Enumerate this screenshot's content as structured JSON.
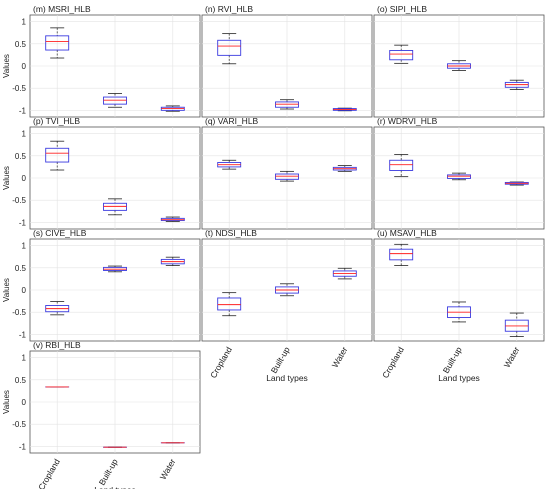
{
  "figure": {
    "ylabel": "Values",
    "xlabel": "Land types",
    "categories": [
      "Cropland",
      "Built-up",
      "Water"
    ],
    "y_ticks": [
      "1",
      "0.5",
      "0",
      "-0.5",
      "-1"
    ],
    "colors": {
      "box": "#3a3ae0",
      "median": "#ff2020",
      "whisker": "#222222",
      "grid": "#e3e3e3",
      "axis": "#555555"
    }
  },
  "chart_data": [
    {
      "type": "box",
      "title": "(m) MSRI_HLB",
      "ylim": [
        -1.15,
        1.15
      ],
      "grid": true,
      "categories": [
        "Cropland",
        "Built-up",
        "Water"
      ],
      "boxes": [
        {
          "min": 0.18,
          "q1": 0.36,
          "median": 0.55,
          "q3": 0.68,
          "max": 0.86
        },
        {
          "min": -0.93,
          "q1": -0.86,
          "median": -0.77,
          "q3": -0.7,
          "max": -0.62
        },
        {
          "min": -1.02,
          "q1": -1.0,
          "median": -0.96,
          "q3": -0.93,
          "max": -0.9
        }
      ]
    },
    {
      "type": "box",
      "title": "(n) RVI_HLB",
      "ylim": [
        -1.15,
        1.15
      ],
      "grid": true,
      "categories": [
        "Cropland",
        "Built-up",
        "Water"
      ],
      "boxes": [
        {
          "min": 0.05,
          "q1": 0.24,
          "median": 0.45,
          "q3": 0.58,
          "max": 0.73
        },
        {
          "min": -0.97,
          "q1": -0.93,
          "median": -0.86,
          "q3": -0.81,
          "max": -0.76
        },
        {
          "min": -1.01,
          "q1": -1.0,
          "median": -0.98,
          "q3": -0.96,
          "max": -0.95
        }
      ]
    },
    {
      "type": "box",
      "title": "(o) SIPI_HLB",
      "ylim": [
        -1.15,
        1.15
      ],
      "grid": true,
      "categories": [
        "Cropland",
        "Built-up",
        "Water"
      ],
      "boxes": [
        {
          "min": 0.06,
          "q1": 0.14,
          "median": 0.27,
          "q3": 0.35,
          "max": 0.47
        },
        {
          "min": -0.1,
          "q1": -0.05,
          "median": 0.0,
          "q3": 0.05,
          "max": 0.12
        },
        {
          "min": -0.53,
          "q1": -0.48,
          "median": -0.42,
          "q3": -0.37,
          "max": -0.32
        }
      ]
    },
    {
      "type": "box",
      "title": "(p) TVI_HLB",
      "ylim": [
        -1.15,
        1.15
      ],
      "grid": true,
      "categories": [
        "Cropland",
        "Built-up",
        "Water"
      ],
      "boxes": [
        {
          "min": 0.18,
          "q1": 0.36,
          "median": 0.56,
          "q3": 0.67,
          "max": 0.83
        },
        {
          "min": -0.83,
          "q1": -0.73,
          "median": -0.64,
          "q3": -0.57,
          "max": -0.47
        },
        {
          "min": -0.98,
          "q1": -0.96,
          "median": -0.94,
          "q3": -0.91,
          "max": -0.88
        }
      ]
    },
    {
      "type": "box",
      "title": "(q) VARI_HLB",
      "ylim": [
        -1.15,
        1.15
      ],
      "grid": true,
      "categories": [
        "Cropland",
        "Built-up",
        "Water"
      ],
      "boxes": [
        {
          "min": 0.2,
          "q1": 0.25,
          "median": 0.3,
          "q3": 0.35,
          "max": 0.4
        },
        {
          "min": -0.07,
          "q1": -0.03,
          "median": 0.04,
          "q3": 0.09,
          "max": 0.15
        },
        {
          "min": 0.15,
          "q1": 0.18,
          "median": 0.21,
          "q3": 0.24,
          "max": 0.28
        }
      ]
    },
    {
      "type": "box",
      "title": "(r) WDRVI_HLB",
      "ylim": [
        -1.15,
        1.15
      ],
      "grid": true,
      "categories": [
        "Cropland",
        "Built-up",
        "Water"
      ],
      "boxes": [
        {
          "min": 0.03,
          "q1": 0.17,
          "median": 0.3,
          "q3": 0.4,
          "max": 0.53
        },
        {
          "min": -0.04,
          "q1": -0.01,
          "median": 0.04,
          "q3": 0.07,
          "max": 0.11
        },
        {
          "min": -0.16,
          "q1": -0.14,
          "median": -0.12,
          "q3": -0.1,
          "max": -0.09
        }
      ]
    },
    {
      "type": "box",
      "title": "(s) CIVE_HLB",
      "ylim": [
        -1.15,
        1.15
      ],
      "grid": true,
      "categories": [
        "Cropland",
        "Built-up",
        "Water"
      ],
      "boxes": [
        {
          "min": -0.56,
          "q1": -0.49,
          "median": -0.42,
          "q3": -0.35,
          "max": -0.26
        },
        {
          "min": 0.41,
          "q1": 0.44,
          "median": 0.47,
          "q3": 0.51,
          "max": 0.54
        },
        {
          "min": 0.55,
          "q1": 0.59,
          "median": 0.64,
          "q3": 0.69,
          "max": 0.74
        }
      ]
    },
    {
      "type": "box",
      "title": "(t) NDSI_HLB",
      "ylim": [
        -1.15,
        1.15
      ],
      "grid": true,
      "categories": [
        "Cropland",
        "Built-up",
        "Water"
      ],
      "boxes": [
        {
          "min": -0.58,
          "q1": -0.45,
          "median": -0.33,
          "q3": -0.18,
          "max": -0.06
        },
        {
          "min": -0.13,
          "q1": -0.07,
          "median": 0.0,
          "q3": 0.07,
          "max": 0.14
        },
        {
          "min": 0.25,
          "q1": 0.31,
          "median": 0.37,
          "q3": 0.43,
          "max": 0.49
        }
      ]
    },
    {
      "type": "box",
      "title": "(u) MSAVI_HLB",
      "ylim": [
        -1.15,
        1.15
      ],
      "grid": true,
      "categories": [
        "Cropland",
        "Built-up",
        "Water"
      ],
      "boxes": [
        {
          "min": 0.55,
          "q1": 0.68,
          "median": 0.82,
          "q3": 0.92,
          "max": 1.03
        },
        {
          "min": -0.72,
          "q1": -0.62,
          "median": -0.5,
          "q3": -0.38,
          "max": -0.27
        },
        {
          "min": -1.05,
          "q1": -0.93,
          "median": -0.81,
          "q3": -0.68,
          "max": -0.52
        }
      ]
    },
    {
      "type": "box",
      "title": "(v) RBI_HLB",
      "ylim": [
        -1.15,
        1.15
      ],
      "grid": true,
      "categories": [
        "Cropland",
        "Built-up",
        "Water"
      ],
      "boxes": [
        {
          "min": 0.34,
          "q1": 0.34,
          "median": 0.34,
          "q3": 0.34,
          "max": 0.34
        },
        {
          "min": -1.02,
          "q1": -1.02,
          "median": -1.02,
          "q3": -1.02,
          "max": -1.02
        },
        {
          "min": -0.92,
          "q1": -0.92,
          "median": -0.92,
          "q3": -0.92,
          "max": -0.92
        }
      ]
    }
  ]
}
